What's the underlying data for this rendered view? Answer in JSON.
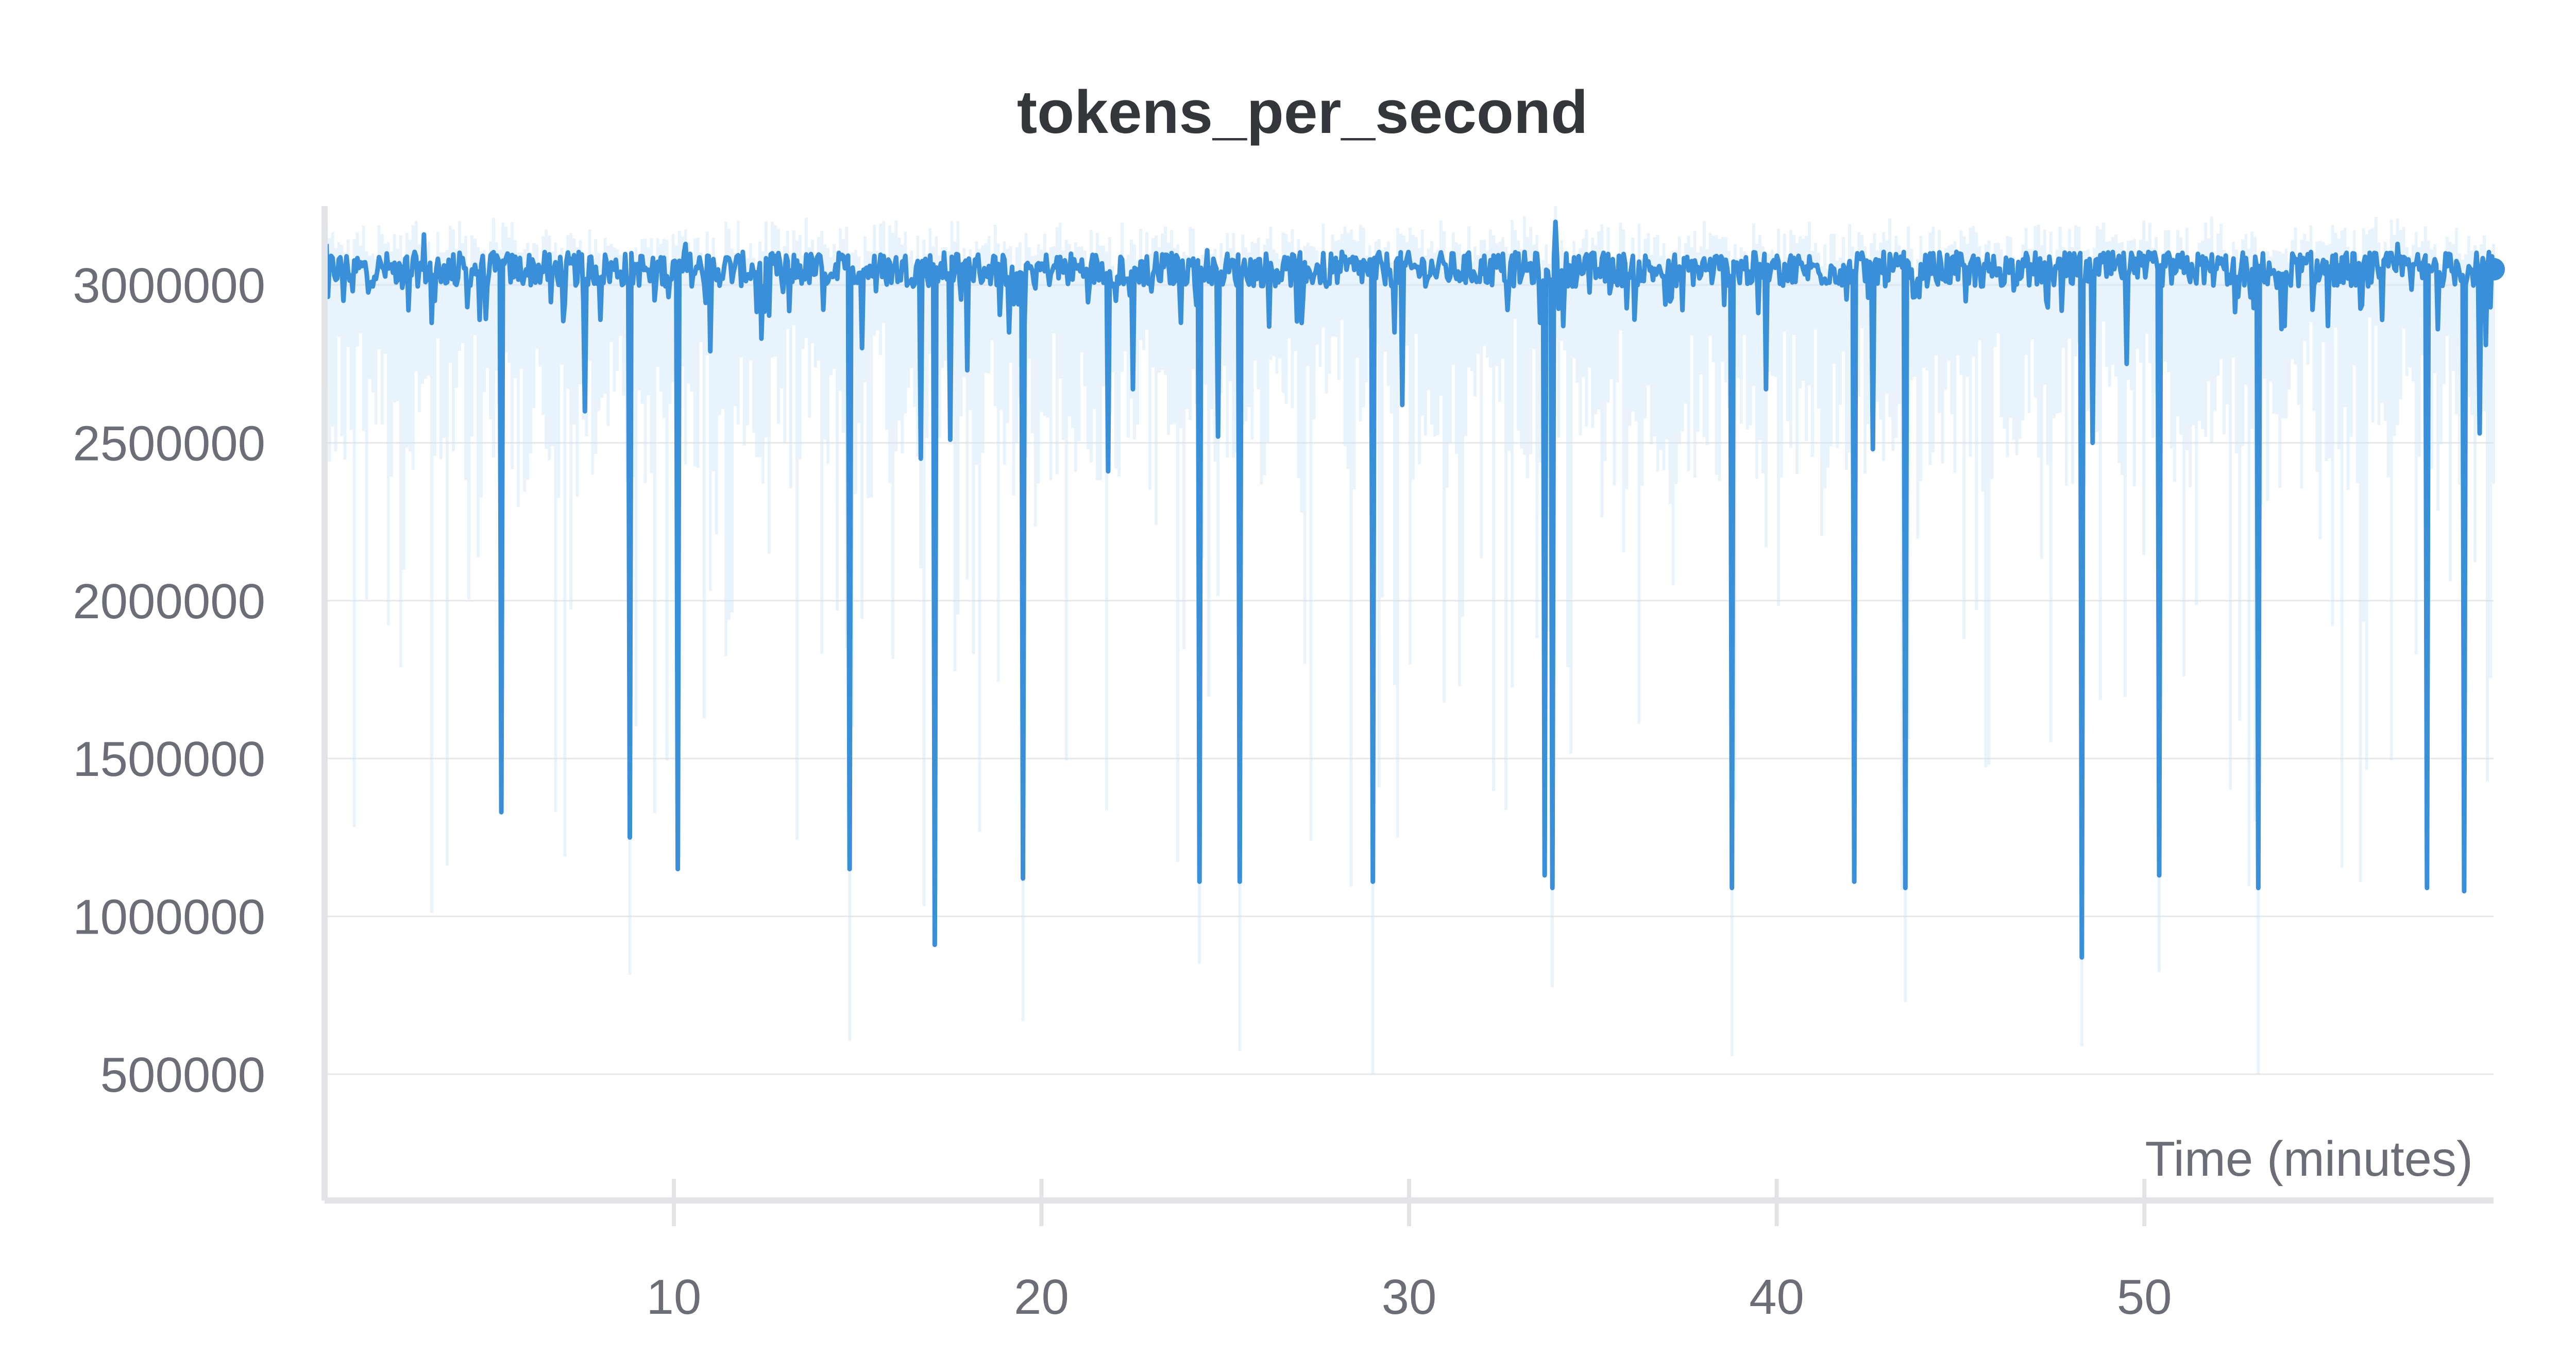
{
  "chart_data": {
    "type": "line",
    "title": "tokens_per_second",
    "xlabel": "Time (minutes)",
    "ylabel": "",
    "xlim": [
      0.5,
      59.5
    ],
    "ylim": [
      100000,
      3250000
    ],
    "x_ticks": [
      10,
      20,
      30,
      40,
      50
    ],
    "y_ticks": [
      500000,
      1000000,
      1500000,
      2000000,
      2500000,
      3000000
    ],
    "x_tick_labels": [
      "10",
      "20",
      "30",
      "40",
      "50"
    ],
    "y_tick_labels": [
      "500000",
      "1000000",
      "1500000",
      "2000000",
      "2500000",
      "3000000"
    ],
    "grid": "horizontal",
    "legend": "none",
    "colors": {
      "line": "#3a8fd9",
      "band": "#cfe5f7",
      "grid": "#e6e8ec",
      "axis": "#e1e3e6",
      "text": "#6b6e76",
      "title": "#33363b"
    },
    "series": [
      {
        "baseline": 3050000,
        "dips": [
          {
            "x": 1.0,
            "y": 2950000
          },
          {
            "x": 2.8,
            "y": 2920000
          },
          {
            "x": 3.4,
            "y": 2880000
          },
          {
            "x": 4.4,
            "y": 2930000
          },
          {
            "x": 5.3,
            "y": 1330000
          },
          {
            "x": 7.6,
            "y": 2600000
          },
          {
            "x": 8.0,
            "y": 2890000
          },
          {
            "x": 8.8,
            "y": 1250000
          },
          {
            "x": 10.1,
            "y": 1150000
          },
          {
            "x": 11.0,
            "y": 2790000
          },
          {
            "x": 12.4,
            "y": 2830000
          },
          {
            "x": 14.8,
            "y": 1150000
          },
          {
            "x": 15.1,
            "y": 2800000
          },
          {
            "x": 16.7,
            "y": 2450000
          },
          {
            "x": 17.1,
            "y": 910000
          },
          {
            "x": 17.5,
            "y": 2510000
          },
          {
            "x": 18.0,
            "y": 2730000
          },
          {
            "x": 19.1,
            "y": 2850000
          },
          {
            "x": 19.5,
            "y": 1120000
          },
          {
            "x": 21.8,
            "y": 2410000
          },
          {
            "x": 22.5,
            "y": 2670000
          },
          {
            "x": 24.3,
            "y": 1110000
          },
          {
            "x": 24.8,
            "y": 2520000
          },
          {
            "x": 25.4,
            "y": 1110000
          },
          {
            "x": 29.0,
            "y": 1110000
          },
          {
            "x": 29.6,
            "y": 2850000
          },
          {
            "x": 29.8,
            "y": 2620000
          },
          {
            "x": 33.7,
            "y": 1130000
          },
          {
            "x": 33.9,
            "y": 1090000
          },
          {
            "x": 34.2,
            "y": 2870000
          },
          {
            "x": 38.8,
            "y": 1090000
          },
          {
            "x": 39.7,
            "y": 2670000
          },
          {
            "x": 42.1,
            "y": 1110000
          },
          {
            "x": 42.6,
            "y": 2480000
          },
          {
            "x": 43.5,
            "y": 1090000
          },
          {
            "x": 48.3,
            "y": 870000
          },
          {
            "x": 48.6,
            "y": 2500000
          },
          {
            "x": 49.5,
            "y": 2750000
          },
          {
            "x": 50.4,
            "y": 1130000
          },
          {
            "x": 53.1,
            "y": 1090000
          },
          {
            "x": 53.8,
            "y": 2870000
          },
          {
            "x": 55.0,
            "y": 2870000
          },
          {
            "x": 57.7,
            "y": 1090000
          },
          {
            "x": 58.0,
            "y": 2860000
          },
          {
            "x": 58.7,
            "y": 1080000
          },
          {
            "x": 59.1,
            "y": 2530000
          },
          {
            "x": 59.3,
            "y": 2810000
          }
        ],
        "peaks": [
          {
            "x": 3.2,
            "y": 3160000
          },
          {
            "x": 10.3,
            "y": 3130000
          },
          {
            "x": 24.5,
            "y": 3110000
          },
          {
            "x": 34.0,
            "y": 3200000
          },
          {
            "x": 56.9,
            "y": 3130000
          }
        ],
        "last_point": {
          "x": 59.5,
          "y": 3050000
        }
      }
    ]
  }
}
